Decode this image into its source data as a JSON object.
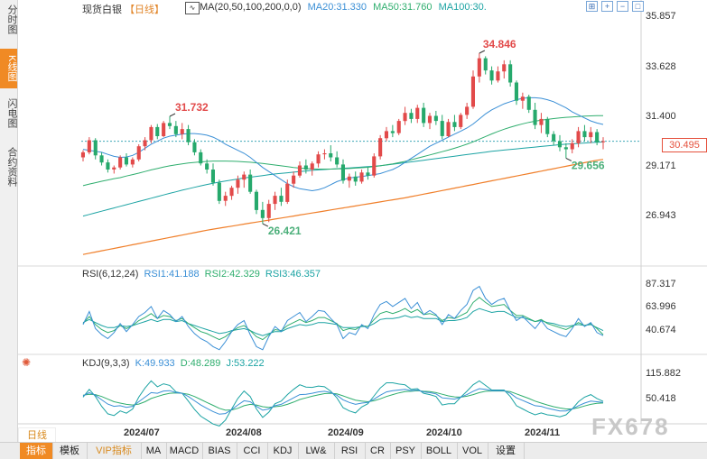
{
  "sidebar": {
    "tabs": [
      {
        "label": "分时图",
        "active": false
      },
      {
        "label": "K线图",
        "active": true
      },
      {
        "label": "闪电图",
        "active": false
      },
      {
        "label": "合约资料",
        "active": false
      }
    ]
  },
  "header": {
    "instrument": "现货白银",
    "period": "【日线】",
    "ma_params": "MA(20,50,100,200,0,0)",
    "ma20": "MA20:31.330",
    "ma50": "MA50:31.760",
    "ma100": "MA100:30."
  },
  "rsi_header": {
    "params": "RSI(6,12,24)",
    "rsi1": "RSI1:41.188",
    "rsi2": "RSI2:42.329",
    "rsi3": "RSI3:46.357"
  },
  "kdj_header": {
    "params": "KDJ(9,3,3)",
    "k": "K:49.933",
    "d": "D:48.289",
    "j": "J:53.222"
  },
  "price_axis": [
    "35.857",
    "33.628",
    "31.400",
    "29.171",
    "26.943"
  ],
  "rsi_axis": [
    "87.317",
    "63.996",
    "40.674"
  ],
  "kdj_axis": [
    "115.882",
    "50.418"
  ],
  "current_price": "30.495",
  "period_button": "日线",
  "x_labels": [
    "2024/07",
    "2024/08",
    "2024/09",
    "2024/10",
    "2024/11"
  ],
  "toolbar": [
    "指标",
    "模板",
    "VIP指标",
    "MA",
    "MACD",
    "BIAS",
    "CCI",
    "KDJ",
    "LW&",
    "RSI",
    "CR",
    "PSY",
    "BOLL",
    "VOL",
    "设置"
  ],
  "watermark": "FX678",
  "colors": {
    "up": "#e24a4a",
    "down": "#26a96c",
    "ma20": "#3a8fd6",
    "ma50": "#2fae6e",
    "ma100": "#1ba3a3",
    "ma200": "#f07f2a"
  },
  "chart_data": {
    "type": "candlestick",
    "title": "现货白银 日线",
    "ylim": [
      25.8,
      36.5
    ],
    "high_annotation": "34.846",
    "low_annotation": "26.421",
    "high_annotation_2": "31.732",
    "low_annotation_2": "29.656",
    "ohlc": [
      [
        29.7,
        30.05,
        29.5,
        29.95
      ],
      [
        29.95,
        30.7,
        29.85,
        30.55
      ],
      [
        30.55,
        30.65,
        29.6,
        29.8
      ],
      [
        29.8,
        29.95,
        29.3,
        29.45
      ],
      [
        29.45,
        29.6,
        28.95,
        29.1
      ],
      [
        29.1,
        29.3,
        28.9,
        29.2
      ],
      [
        29.2,
        29.8,
        29.1,
        29.7
      ],
      [
        29.7,
        29.9,
        29.25,
        29.35
      ],
      [
        29.35,
        29.7,
        29.2,
        29.6
      ],
      [
        29.6,
        30.35,
        29.5,
        30.25
      ],
      [
        30.25,
        30.7,
        30.05,
        30.55
      ],
      [
        30.55,
        31.3,
        30.4,
        31.2
      ],
      [
        31.2,
        31.35,
        30.6,
        30.75
      ],
      [
        30.75,
        31.5,
        30.7,
        31.4
      ],
      [
        31.4,
        31.73,
        31.1,
        31.25
      ],
      [
        31.25,
        31.5,
        30.7,
        30.85
      ],
      [
        30.85,
        31.4,
        30.6,
        31.1
      ],
      [
        31.1,
        31.3,
        30.3,
        30.45
      ],
      [
        30.45,
        30.6,
        29.8,
        29.95
      ],
      [
        29.95,
        30.1,
        29.3,
        29.4
      ],
      [
        29.4,
        29.6,
        28.9,
        29.1
      ],
      [
        29.1,
        29.4,
        28.3,
        28.45
      ],
      [
        28.45,
        28.6,
        27.4,
        27.55
      ],
      [
        27.55,
        28.0,
        27.3,
        27.8
      ],
      [
        27.8,
        28.3,
        27.6,
        28.2
      ],
      [
        28.2,
        28.8,
        27.9,
        28.6
      ],
      [
        28.6,
        29.0,
        28.2,
        28.85
      ],
      [
        28.85,
        29.1,
        27.9,
        28.0
      ],
      [
        28.0,
        28.1,
        26.9,
        27.1
      ],
      [
        27.1,
        27.5,
        26.42,
        26.7
      ],
      [
        26.7,
        27.6,
        26.5,
        27.4
      ],
      [
        27.4,
        28.0,
        27.1,
        27.8
      ],
      [
        27.8,
        28.2,
        27.3,
        27.5
      ],
      [
        27.5,
        28.6,
        27.4,
        28.4
      ],
      [
        28.4,
        29.0,
        28.2,
        28.8
      ],
      [
        28.8,
        29.5,
        28.7,
        29.3
      ],
      [
        29.3,
        29.6,
        28.9,
        29.1
      ],
      [
        29.1,
        29.5,
        28.8,
        29.4
      ],
      [
        29.4,
        30.0,
        29.2,
        29.85
      ],
      [
        29.85,
        30.1,
        29.6,
        29.9
      ],
      [
        29.9,
        30.3,
        29.5,
        29.7
      ],
      [
        29.7,
        30.0,
        29.2,
        29.35
      ],
      [
        29.35,
        29.6,
        28.4,
        28.55
      ],
      [
        28.55,
        28.9,
        28.2,
        28.75
      ],
      [
        28.75,
        29.0,
        28.3,
        28.5
      ],
      [
        28.5,
        29.1,
        28.4,
        28.95
      ],
      [
        28.95,
        29.2,
        28.6,
        28.8
      ],
      [
        28.8,
        29.9,
        28.7,
        29.75
      ],
      [
        29.75,
        30.8,
        29.6,
        30.65
      ],
      [
        30.65,
        31.2,
        30.5,
        31.0
      ],
      [
        31.0,
        31.3,
        30.7,
        30.9
      ],
      [
        30.9,
        31.6,
        30.8,
        31.5
      ],
      [
        31.5,
        32.2,
        31.3,
        31.9
      ],
      [
        31.9,
        32.1,
        31.4,
        31.6
      ],
      [
        31.6,
        32.3,
        31.4,
        32.15
      ],
      [
        32.15,
        32.4,
        31.2,
        31.4
      ],
      [
        31.4,
        31.9,
        31.1,
        31.75
      ],
      [
        31.75,
        32.0,
        31.3,
        31.5
      ],
      [
        31.5,
        31.8,
        30.6,
        30.75
      ],
      [
        30.75,
        31.6,
        30.7,
        31.45
      ],
      [
        31.45,
        31.8,
        31.0,
        31.2
      ],
      [
        31.2,
        31.9,
        31.1,
        31.8
      ],
      [
        31.8,
        32.4,
        31.6,
        32.2
      ],
      [
        32.2,
        34.0,
        32.1,
        33.7
      ],
      [
        33.7,
        34.85,
        33.4,
        34.6
      ],
      [
        34.6,
        34.7,
        33.8,
        34.0
      ],
      [
        34.0,
        34.2,
        33.3,
        33.5
      ],
      [
        33.5,
        34.2,
        33.4,
        33.95
      ],
      [
        33.95,
        34.5,
        33.6,
        34.3
      ],
      [
        34.3,
        34.5,
        33.2,
        33.4
      ],
      [
        33.4,
        33.5,
        32.3,
        32.5
      ],
      [
        32.5,
        32.9,
        32.1,
        32.7
      ],
      [
        32.7,
        32.8,
        31.9,
        32.05
      ],
      [
        32.05,
        32.4,
        31.1,
        31.3
      ],
      [
        31.3,
        31.9,
        30.9,
        31.6
      ],
      [
        31.6,
        31.7,
        30.7,
        30.85
      ],
      [
        30.85,
        31.0,
        30.3,
        30.5
      ],
      [
        30.5,
        30.8,
        30.0,
        30.2
      ],
      [
        30.2,
        30.4,
        29.66,
        30.1
      ],
      [
        30.1,
        30.6,
        29.9,
        30.4
      ],
      [
        30.4,
        31.2,
        30.2,
        31.0
      ],
      [
        31.0,
        31.3,
        30.5,
        30.7
      ],
      [
        30.7,
        31.2,
        30.4,
        30.95
      ],
      [
        30.95,
        31.1,
        30.3,
        30.45
      ],
      [
        30.45,
        30.7,
        30.1,
        30.5
      ]
    ],
    "ma20": [
      30.1,
      30.05,
      30.0,
      29.95,
      29.85,
      29.75,
      29.7,
      29.72,
      29.8,
      29.95,
      30.15,
      30.35,
      30.5,
      30.65,
      30.75,
      30.8,
      30.85,
      30.88,
      30.88,
      30.85,
      30.8,
      30.7,
      30.55,
      30.35,
      30.2,
      30.05,
      29.9,
      29.7,
      29.45,
      29.2,
      29.0,
      28.8,
      28.6,
      28.4,
      28.25,
      28.15,
      28.1,
      28.05,
      28.1,
      28.2,
      28.35,
      28.5,
      28.6,
      28.68,
      28.72,
      28.75,
      28.8,
      28.85,
      28.9,
      29.0,
      29.1,
      29.25,
      29.45,
      29.65,
      29.85,
      30.05,
      30.25,
      30.4,
      30.55,
      30.7,
      30.85,
      31.0,
      31.15,
      31.35,
      31.6,
      31.85,
      32.05,
      32.2,
      32.35,
      32.45,
      32.55,
      32.62,
      32.65,
      32.65,
      32.62,
      32.55,
      32.45,
      32.3,
      32.15,
      31.95,
      31.8,
      31.65,
      31.5,
      31.4,
      31.33
    ],
    "ma50": [
      28.3,
      28.38,
      28.45,
      28.52,
      28.58,
      28.65,
      28.7,
      28.78,
      28.85,
      28.92,
      29.0,
      29.08,
      29.15,
      29.22,
      29.28,
      29.33,
      29.38,
      29.42,
      29.45,
      29.48,
      29.5,
      29.52,
      29.52,
      29.52,
      29.51,
      29.5,
      29.48,
      29.46,
      29.43,
      29.4,
      29.36,
      29.32,
      29.28,
      29.24,
      29.2,
      29.17,
      29.15,
      29.13,
      29.12,
      29.12,
      29.12,
      29.13,
      29.14,
      29.15,
      29.17,
      29.19,
      29.21,
      29.24,
      29.28,
      29.33,
      29.38,
      29.44,
      29.5,
      29.58,
      29.66,
      29.74,
      29.82,
      29.9,
      29.98,
      30.06,
      30.15,
      30.25,
      30.35,
      30.47,
      30.6,
      30.73,
      30.86,
      30.98,
      31.09,
      31.19,
      31.28,
      31.36,
      31.43,
      31.49,
      31.54,
      31.58,
      31.62,
      31.65,
      31.68,
      31.7,
      31.72,
      31.74,
      31.75,
      31.76,
      31.76
    ],
    "ma100": [
      26.8,
      26.88,
      26.96,
      27.04,
      27.12,
      27.2,
      27.28,
      27.36,
      27.44,
      27.52,
      27.6,
      27.68,
      27.76,
      27.84,
      27.92,
      28.0,
      28.08,
      28.15,
      28.22,
      28.29,
      28.36,
      28.42,
      28.48,
      28.53,
      28.58,
      28.63,
      28.68,
      28.72,
      28.76,
      28.8,
      28.84,
      28.88,
      28.91,
      28.94,
      28.97,
      29.0,
      29.03,
      29.06,
      29.08,
      29.1,
      29.12,
      29.14,
      29.16,
      29.18,
      29.2,
      29.22,
      29.24,
      29.26,
      29.29,
      29.32,
      29.36,
      29.4,
      29.44,
      29.48,
      29.52,
      29.56,
      29.6,
      29.64,
      29.68,
      29.72,
      29.76,
      29.8,
      29.84,
      29.88,
      29.92,
      29.96,
      30.0,
      30.03,
      30.06,
      30.09,
      30.12,
      30.15,
      30.18,
      30.21,
      30.24,
      30.27,
      30.3,
      30.33,
      30.35,
      30.37,
      30.39,
      30.41,
      30.43,
      30.45,
      30.46
    ],
    "ma200": [
      24.9,
      24.96,
      25.02,
      25.08,
      25.14,
      25.2,
      25.26,
      25.32,
      25.38,
      25.44,
      25.5,
      25.56,
      25.62,
      25.68,
      25.74,
      25.8,
      25.86,
      25.92,
      25.98,
      26.04,
      26.1,
      26.15,
      26.2,
      26.25,
      26.3,
      26.35,
      26.4,
      26.45,
      26.5,
      26.55,
      26.6,
      26.65,
      26.7,
      26.75,
      26.8,
      26.85,
      26.9,
      26.95,
      27.0,
      27.05,
      27.1,
      27.15,
      27.2,
      27.25,
      27.3,
      27.35,
      27.4,
      27.45,
      27.5,
      27.55,
      27.6,
      27.65,
      27.7,
      27.76,
      27.82,
      27.88,
      27.94,
      28.0,
      28.06,
      28.12,
      28.18,
      28.24,
      28.3,
      28.36,
      28.42,
      28.48,
      28.54,
      28.6,
      28.66,
      28.72,
      28.78,
      28.84,
      28.9,
      28.96,
      29.02,
      29.08,
      29.14,
      29.2,
      29.26,
      29.32,
      29.38,
      29.44,
      29.5,
      29.56,
      29.6
    ]
  },
  "rsi_data": {
    "ylim": [
      25,
      95
    ],
    "rsi1": [
      52,
      65,
      48,
      42,
      38,
      44,
      53,
      45,
      52,
      60,
      64,
      70,
      58,
      66,
      62,
      55,
      60,
      50,
      43,
      38,
      35,
      30,
      27,
      35,
      45,
      52,
      56,
      42,
      30,
      27,
      40,
      50,
      45,
      56,
      60,
      64,
      55,
      60,
      66,
      65,
      58,
      52,
      38,
      44,
      42,
      52,
      48,
      62,
      72,
      75,
      70,
      74,
      78,
      68,
      74,
      62,
      66,
      62,
      52,
      62,
      58,
      66,
      72,
      86,
      90,
      78,
      72,
      76,
      78,
      66,
      56,
      60,
      54,
      48,
      56,
      48,
      45,
      42,
      40,
      48,
      58,
      50,
      54,
      44,
      41
    ],
    "rsi2": [
      53,
      60,
      52,
      47,
      44,
      46,
      51,
      48,
      51,
      56,
      59,
      63,
      58,
      61,
      60,
      56,
      58,
      53,
      49,
      45,
      43,
      40,
      37,
      40,
      45,
      49,
      51,
      46,
      40,
      37,
      42,
      47,
      46,
      51,
      54,
      57,
      54,
      56,
      59,
      59,
      56,
      53,
      46,
      48,
      47,
      51,
      50,
      57,
      63,
      65,
      63,
      65,
      68,
      64,
      67,
      62,
      63,
      61,
      56,
      59,
      58,
      61,
      64,
      74,
      79,
      74,
      70,
      71,
      72,
      66,
      61,
      61,
      58,
      55,
      57,
      53,
      51,
      49,
      47,
      50,
      54,
      51,
      53,
      48,
      42
    ],
    "rsi3": [
      54,
      57,
      54,
      51,
      49,
      49,
      51,
      50,
      51,
      53,
      55,
      57,
      55,
      57,
      57,
      55,
      56,
      53,
      51,
      49,
      47,
      45,
      43,
      44,
      46,
      47,
      48,
      46,
      43,
      41,
      43,
      45,
      45,
      48,
      50,
      52,
      51,
      52,
      54,
      54,
      53,
      52,
      49,
      49,
      49,
      50,
      50,
      53,
      57,
      58,
      58,
      59,
      61,
      59,
      60,
      58,
      58,
      58,
      55,
      56,
      56,
      57,
      59,
      65,
      68,
      66,
      64,
      65,
      65,
      62,
      59,
      59,
      57,
      55,
      56,
      54,
      53,
      51,
      50,
      51,
      52,
      51,
      52,
      49,
      46
    ]
  },
  "kdj_data": {
    "ylim": [
      -10,
      150
    ],
    "k": [
      70,
      80,
      72,
      58,
      45,
      38,
      40,
      35,
      38,
      52,
      66,
      80,
      78,
      85,
      86,
      80,
      78,
      68,
      55,
      42,
      32,
      22,
      14,
      16,
      28,
      42,
      55,
      52,
      38,
      26,
      30,
      40,
      44,
      54,
      64,
      74,
      75,
      78,
      82,
      84,
      80,
      72,
      58,
      50,
      44,
      48,
      50,
      60,
      72,
      82,
      86,
      88,
      90,
      86,
      88,
      82,
      80,
      76,
      64,
      62,
      60,
      66,
      74,
      84,
      92,
      90,
      86,
      86,
      86,
      78,
      64,
      56,
      48,
      40,
      38,
      32,
      28,
      24,
      24,
      30,
      40,
      48,
      54,
      52,
      49.9
    ],
    "d": [
      72,
      75,
      74,
      68,
      60,
      52,
      48,
      44,
      42,
      45,
      52,
      62,
      68,
      74,
      78,
      79,
      78,
      75,
      68,
      59,
      50,
      41,
      32,
      26,
      27,
      32,
      40,
      44,
      42,
      37,
      35,
      37,
      39,
      44,
      51,
      59,
      64,
      69,
      73,
      77,
      78,
      76,
      70,
      63,
      57,
      54,
      52,
      55,
      61,
      68,
      74,
      79,
      83,
      84,
      86,
      84,
      83,
      80,
      75,
      70,
      67,
      66,
      69,
      74,
      80,
      84,
      85,
      85,
      85,
      83,
      76,
      69,
      62,
      54,
      48,
      42,
      37,
      33,
      30,
      30,
      34,
      39,
      44,
      47,
      48.3
    ],
    "j": [
      66,
      90,
      68,
      38,
      15,
      10,
      24,
      17,
      30,
      66,
      94,
      116,
      98,
      107,
      102,
      82,
      78,
      54,
      29,
      8,
      -4,
      -16,
      -22,
      -4,
      30,
      62,
      85,
      68,
      30,
      4,
      20,
      46,
      54,
      74,
      90,
      104,
      97,
      96,
      100,
      98,
      84,
      64,
      34,
      24,
      18,
      36,
      46,
      70,
      94,
      110,
      110,
      106,
      104,
      90,
      92,
      78,
      74,
      68,
      42,
      46,
      46,
      66,
      84,
      104,
      116,
      102,
      88,
      88,
      88,
      68,
      40,
      30,
      20,
      12,
      18,
      12,
      10,
      6,
      12,
      30,
      52,
      66,
      74,
      62,
      53.2
    ]
  }
}
